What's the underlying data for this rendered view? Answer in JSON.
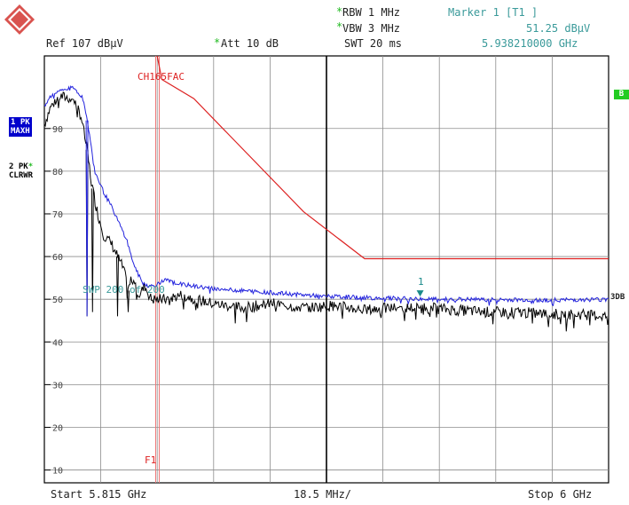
{
  "header": {
    "rbw": "RBW 1 MHz",
    "vbw": "VBW 3 MHz",
    "swt": "SWT 20 ms",
    "ref": "Ref  107 dBμV",
    "att": "Att  10 dB",
    "star": "*",
    "marker_title": "Marker 1 [T1 ]",
    "marker_level": "51.25 dBμV",
    "marker_freq": "5.938210000 GHz"
  },
  "logo": {
    "text": "R&S"
  },
  "traces": {
    "t1_line1": "1 PK",
    "t1_line2": "MAXH",
    "t2_line1": "2 PK",
    "t2_star": "*",
    "t2_line2": "CLRWR"
  },
  "side_labels": {
    "b": "B",
    "db": "3DB"
  },
  "annotations": {
    "limit_line": "CH165FAC",
    "swp": "SWP  200 of  200",
    "f1": "F1",
    "marker_label": "1"
  },
  "footer": {
    "start": "Start 5.815 GHz",
    "span": "18.5 MHz/",
    "stop": "Stop 6 GHz"
  },
  "colors": {
    "grid": "#8c8c8c",
    "trace1": "#2222dd",
    "trace2": "#000000",
    "limit": "#dd2222",
    "f1": "#ee7777",
    "marker": "#1a8a8a",
    "text_teal": "#3a9a9a"
  },
  "chart_data": {
    "type": "line",
    "title": "",
    "xlabel": "",
    "ylabel": "",
    "xlim": [
      5.815,
      6.0
    ],
    "ylim": [
      7,
      107
    ],
    "x_unit": "GHz",
    "y_unit": "dBμV",
    "y_ticks": [
      90,
      80,
      70,
      60,
      50,
      40,
      30,
      20,
      10
    ],
    "grid": true,
    "center_divider_x": 5.9075,
    "f1_x": 5.8515,
    "marker": {
      "x": 5.93821,
      "y": 51.25
    },
    "series": [
      {
        "id": "trace1",
        "x": [
          5.815,
          5.817,
          5.82,
          5.8245,
          5.8275,
          5.8295,
          5.8315,
          5.8345,
          5.8375,
          5.84,
          5.842,
          5.8435,
          5.845,
          5.847,
          5.8495,
          5.852,
          5.8545,
          5.86,
          5.87,
          5.88,
          5.89,
          5.9,
          5.91,
          5.92,
          5.93,
          5.94,
          5.95,
          5.96,
          5.97,
          5.98,
          5.99,
          6.0
        ],
        "y": [
          95,
          97.5,
          99,
          99.5,
          97.5,
          90,
          80,
          75,
          71,
          67,
          64,
          60,
          57,
          54,
          53,
          53.5,
          54.5,
          53.5,
          52.5,
          52,
          51.5,
          51,
          50.6,
          50.4,
          50.2,
          50,
          50,
          49.9,
          49.9,
          49.8,
          49.9,
          50
        ]
      },
      {
        "id": "trace2",
        "x": [
          5.815,
          5.817,
          5.82,
          5.8245,
          5.827,
          5.829,
          5.8305,
          5.8325,
          5.8345,
          5.837,
          5.839,
          5.841,
          5.8425,
          5.844,
          5.846,
          5.848,
          5.85,
          5.855,
          5.86,
          5.87,
          5.88,
          5.89,
          5.9,
          5.91,
          5.92,
          5.93,
          5.94,
          5.95,
          5.96,
          5.97,
          5.98,
          5.99,
          6.0
        ],
        "y": [
          91,
          95,
          97.5,
          97,
          93,
          85,
          77,
          70,
          65,
          63,
          60,
          57,
          52,
          56,
          51,
          53,
          50,
          50,
          51,
          49,
          48,
          49,
          48,
          48.5,
          47.5,
          48,
          48,
          47.5,
          47,
          47,
          46.5,
          46.5,
          46
        ]
      },
      {
        "id": "limit",
        "x": [
          5.852,
          5.8535,
          5.864,
          5.9,
          5.92,
          6.0
        ],
        "y": [
          107,
          101.5,
          97,
          70.5,
          59.5,
          59.5
        ]
      }
    ],
    "dips": [
      {
        "x": 5.829,
        "trace2_y": 46,
        "trace1_y": 46
      },
      {
        "x": 5.8308,
        "trace2_y": 47
      },
      {
        "x": 5.839,
        "trace2_y": 46
      },
      {
        "x": 5.8425,
        "trace2_y": 47
      }
    ]
  }
}
